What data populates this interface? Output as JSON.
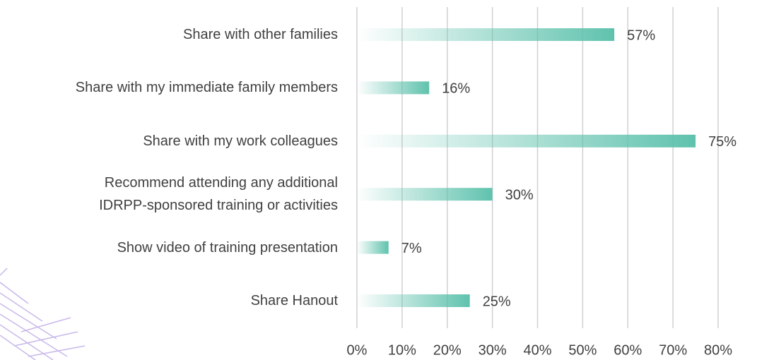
{
  "chart_data": {
    "type": "bar",
    "orientation": "horizontal",
    "categories": [
      "Share with other families",
      "Share with my immediate family members",
      "Share with my work colleagues",
      "Recommend attending any additional\nIDRPP-sponsored training or activities",
      "Show video of training presentation",
      "Share Hanout"
    ],
    "values": [
      57,
      16,
      75,
      30,
      7,
      25
    ],
    "value_labels": [
      "57%",
      "16%",
      "75%",
      "30%",
      "7%",
      "25%"
    ],
    "color": "#5fc2ad",
    "xlim": [
      0,
      80
    ],
    "xticks": [
      {
        "value": 0,
        "label": "0%"
      },
      {
        "value": 10,
        "label": "10%"
      },
      {
        "value": 20,
        "label": "20%"
      },
      {
        "value": 30,
        "label": "30%"
      },
      {
        "value": 40,
        "label": "40%"
      },
      {
        "value": 50,
        "label": "50%"
      },
      {
        "value": 60,
        "label": "60%"
      },
      {
        "value": 70,
        "label": "70%"
      },
      {
        "value": 80,
        "label": "80%"
      }
    ],
    "grid": true
  }
}
